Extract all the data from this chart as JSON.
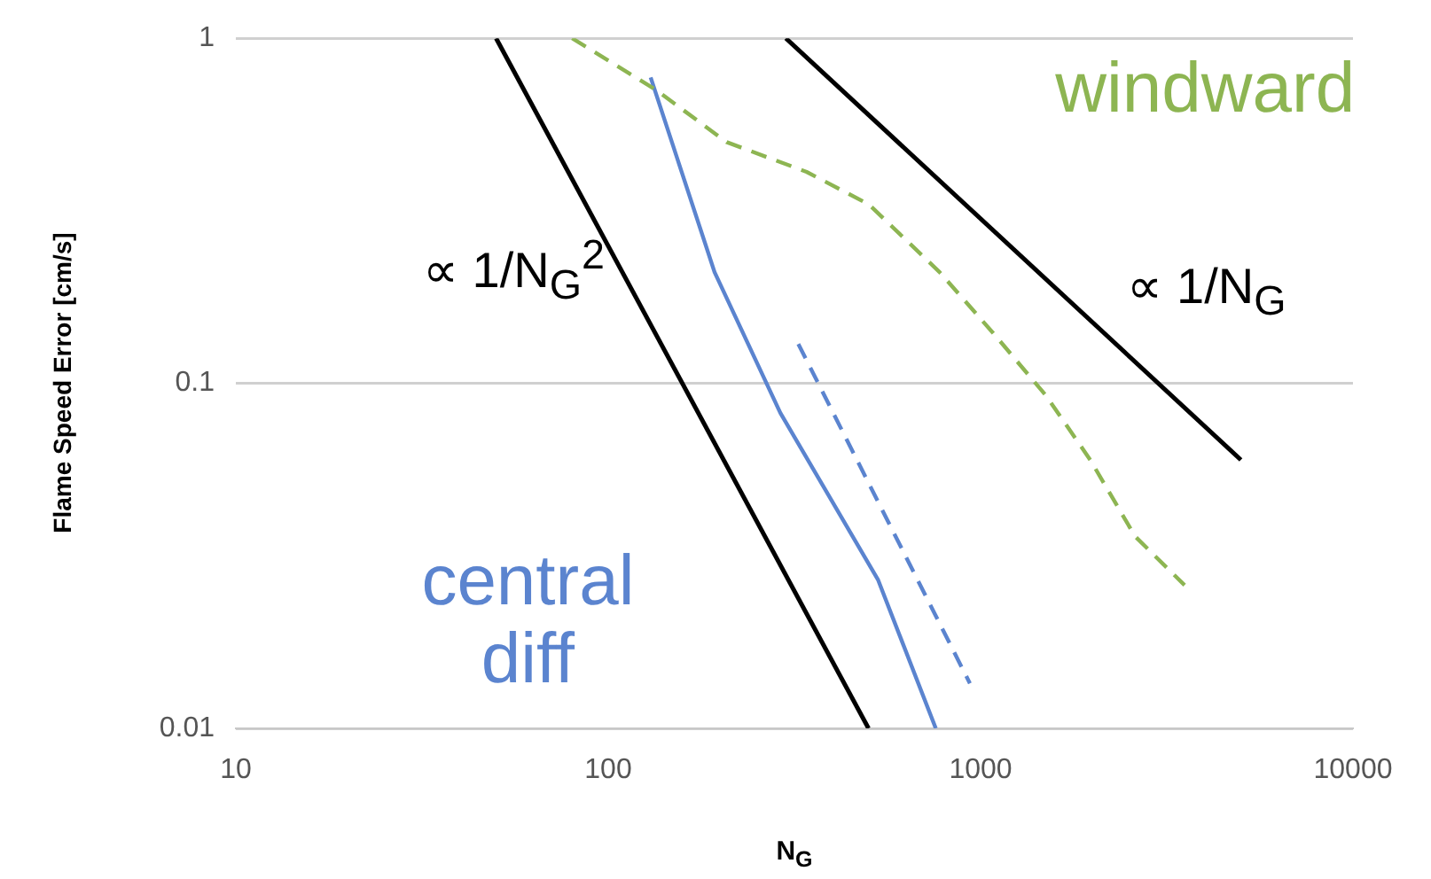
{
  "chart_data": {
    "type": "line",
    "xlabel": "N$_{G}$",
    "ylabel": "Flame Speed Error [cm/s]",
    "log": "xy",
    "xlim": [
      10,
      10000
    ],
    "xticks": [
      10,
      100,
      1000,
      10000
    ],
    "ylim": [
      0.01,
      1
    ],
    "yticks": [
      0.01,
      0.1,
      1
    ],
    "grid": "y",
    "marker": "none",
    "legend": false,
    "series": [
      {
        "name": "∝ 1/N$_{G}$$^{2}$",
        "color": "#000000",
        "x": [
          50,
          500
        ],
        "values": [
          1,
          0.01
        ],
        "line_style": "solid"
      },
      {
        "name": "∝ 1/N$_{G}$",
        "color": "#000000",
        "x": [
          300,
          5000
        ],
        "values": [
          1,
          0.06
        ],
        "line_style": "solid"
      },
      {
        "name": "windward",
        "color": "#8db552",
        "x": [
          80,
          134,
          208,
          341,
          501,
          776,
          1080,
          1500,
          1970,
          2600,
          3530
        ],
        "values": [
          1,
          0.71,
          0.5,
          0.41,
          0.33,
          0.21,
          0.14,
          0.092,
          0.06,
          0.036,
          0.026
        ],
        "line_style": "dashed"
      },
      {
        "name": "central diff",
        "color": "#5b84cf",
        "x": [
          130,
          193,
          290,
          530,
          758
        ],
        "values": [
          0.77,
          0.21,
          0.082,
          0.027,
          0.01
        ],
        "line_style": "solid"
      },
      {
        "color": "#5b84cf",
        "x": [
          324,
          936
        ],
        "values": [
          0.13,
          0.0135
        ],
        "line_style": "dashed"
      }
    ]
  }
}
